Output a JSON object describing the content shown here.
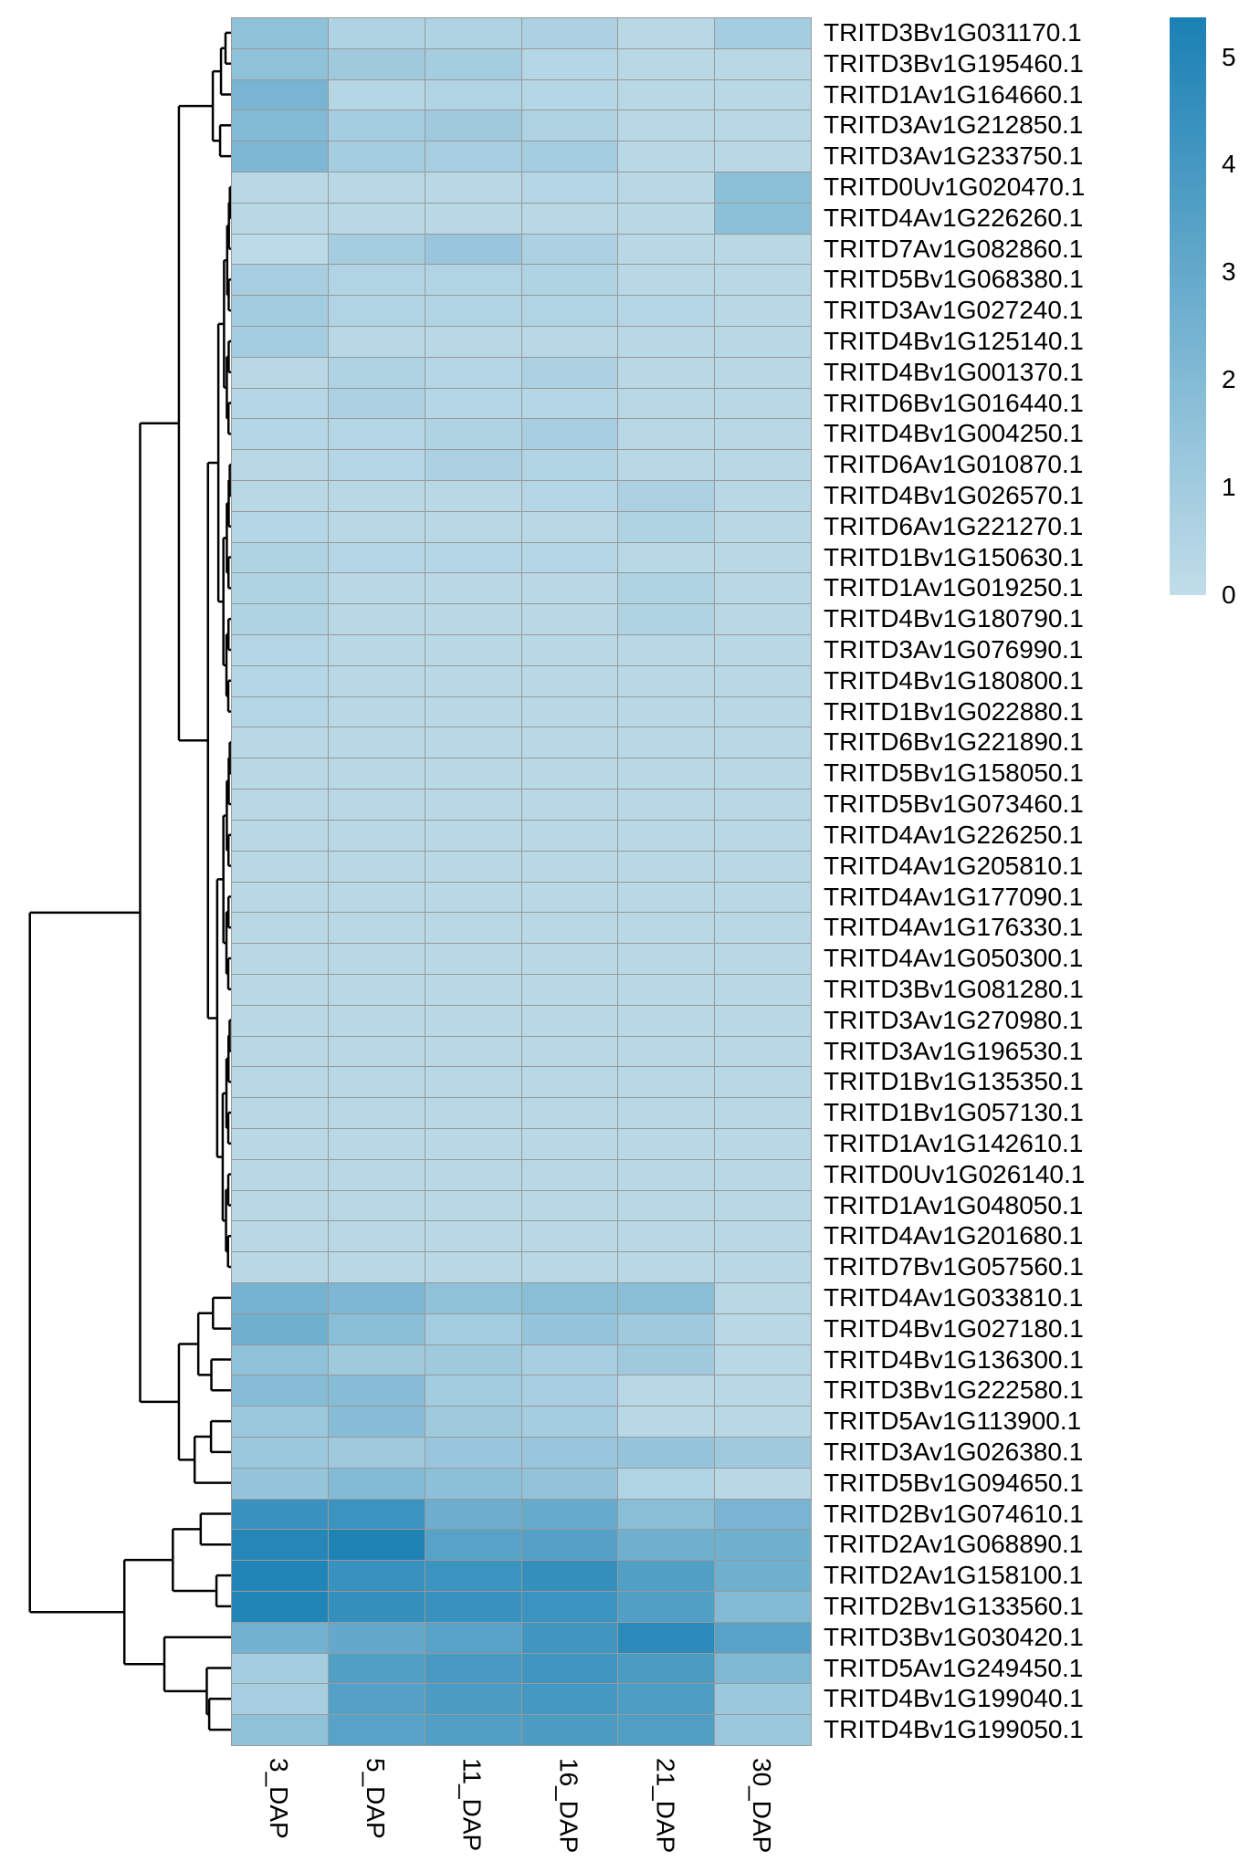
{
  "chart_data": {
    "type": "heatmap",
    "title": "",
    "columns": [
      "3_DAP",
      "5_DAP",
      "11_DAP",
      "16_DAP",
      "21_DAP",
      "30_DAP"
    ],
    "rows": [
      "TRITD3Bv1G031170.1",
      "TRITD3Bv1G195460.1",
      "TRITD1Av1G164660.1",
      "TRITD3Av1G212850.1",
      "TRITD3Av1G233750.1",
      "TRITD0Uv1G020470.1",
      "TRITD4Av1G226260.1",
      "TRITD7Av1G082860.1",
      "TRITD5Bv1G068380.1",
      "TRITD3Av1G027240.1",
      "TRITD4Bv1G125140.1",
      "TRITD4Bv1G001370.1",
      "TRITD6Bv1G016440.1",
      "TRITD4Bv1G004250.1",
      "TRITD6Av1G010870.1",
      "TRITD4Bv1G026570.1",
      "TRITD6Av1G221270.1",
      "TRITD1Bv1G150630.1",
      "TRITD1Av1G019250.1",
      "TRITD4Bv1G180790.1",
      "TRITD3Av1G076990.1",
      "TRITD4Bv1G180800.1",
      "TRITD1Bv1G022880.1",
      "TRITD6Bv1G221890.1",
      "TRITD5Bv1G158050.1",
      "TRITD5Bv1G073460.1",
      "TRITD4Av1G226250.1",
      "TRITD4Av1G205810.1",
      "TRITD4Av1G177090.1",
      "TRITD4Av1G176330.1",
      "TRITD4Av1G050300.1",
      "TRITD3Bv1G081280.1",
      "TRITD3Av1G270980.1",
      "TRITD3Av1G196530.1",
      "TRITD1Bv1G135350.1",
      "TRITD1Bv1G057130.1",
      "TRITD1Av1G142610.1",
      "TRITD0Uv1G026140.1",
      "TRITD1Av1G048050.1",
      "TRITD4Av1G201680.1",
      "TRITD7Bv1G057560.1",
      "TRITD4Av1G033810.1",
      "TRITD4Bv1G027180.1",
      "TRITD4Bv1G136300.1",
      "TRITD3Bv1G222580.1",
      "TRITD5Av1G113900.1",
      "TRITD3Av1G026380.1",
      "TRITD5Bv1G094650.1",
      "TRITD2Bv1G074610.1",
      "TRITD2Av1G068890.1",
      "TRITD2Av1G158100.1",
      "TRITD2Bv1G133560.1",
      "TRITD3Bv1G030420.1",
      "TRITD5Av1G249450.1",
      "TRITD4Bv1G199040.1",
      "TRITD4Bv1G199050.1"
    ],
    "values": [
      [
        1.6,
        0.6,
        0.6,
        0.7,
        0.3,
        0.9
      ],
      [
        1.6,
        1.1,
        0.9,
        0.4,
        0.3,
        0.3
      ],
      [
        2.3,
        0.4,
        0.5,
        0.4,
        0.3,
        0.3
      ],
      [
        2.0,
        0.9,
        1.1,
        0.6,
        0.3,
        0.3
      ],
      [
        2.2,
        0.9,
        0.8,
        0.9,
        0.3,
        0.3
      ],
      [
        0.3,
        0.3,
        0.3,
        0.4,
        0.3,
        1.7
      ],
      [
        0.3,
        0.3,
        0.3,
        0.3,
        0.3,
        1.7
      ],
      [
        0.2,
        0.9,
        1.3,
        0.7,
        0.3,
        0.3
      ],
      [
        0.8,
        0.5,
        0.5,
        0.6,
        0.3,
        0.3
      ],
      [
        1.0,
        0.5,
        0.5,
        0.5,
        0.4,
        0.3
      ],
      [
        0.9,
        0.3,
        0.3,
        0.3,
        0.3,
        0.3
      ],
      [
        0.3,
        0.6,
        0.4,
        0.7,
        0.3,
        0.3
      ],
      [
        0.4,
        0.7,
        0.4,
        0.4,
        0.3,
        0.3
      ],
      [
        0.4,
        0.4,
        0.6,
        0.8,
        0.3,
        0.3
      ],
      [
        0.3,
        0.4,
        0.7,
        0.5,
        0.3,
        0.3
      ],
      [
        0.3,
        0.3,
        0.3,
        0.4,
        0.7,
        0.3
      ],
      [
        0.4,
        0.3,
        0.3,
        0.3,
        0.6,
        0.3
      ],
      [
        0.6,
        0.4,
        0.4,
        0.4,
        0.3,
        0.3
      ],
      [
        0.6,
        0.3,
        0.3,
        0.3,
        0.6,
        0.3
      ],
      [
        0.6,
        0.3,
        0.3,
        0.3,
        0.6,
        0.3
      ],
      [
        0.4,
        0.3,
        0.3,
        0.3,
        0.3,
        0.3
      ],
      [
        0.4,
        0.3,
        0.3,
        0.3,
        0.3,
        0.3
      ],
      [
        0.4,
        0.3,
        0.3,
        0.3,
        0.3,
        0.3
      ],
      [
        0.3,
        0.3,
        0.3,
        0.3,
        0.3,
        0.3
      ],
      [
        0.3,
        0.3,
        0.3,
        0.3,
        0.3,
        0.3
      ],
      [
        0.3,
        0.3,
        0.3,
        0.3,
        0.3,
        0.3
      ],
      [
        0.3,
        0.3,
        0.3,
        0.3,
        0.3,
        0.3
      ],
      [
        0.3,
        0.3,
        0.3,
        0.3,
        0.3,
        0.3
      ],
      [
        0.3,
        0.3,
        0.3,
        0.3,
        0.3,
        0.3
      ],
      [
        0.3,
        0.3,
        0.3,
        0.3,
        0.3,
        0.3
      ],
      [
        0.3,
        0.3,
        0.3,
        0.3,
        0.3,
        0.3
      ],
      [
        0.3,
        0.3,
        0.3,
        0.3,
        0.3,
        0.3
      ],
      [
        0.3,
        0.3,
        0.3,
        0.3,
        0.3,
        0.3
      ],
      [
        0.3,
        0.3,
        0.3,
        0.3,
        0.3,
        0.3
      ],
      [
        0.3,
        0.3,
        0.3,
        0.3,
        0.3,
        0.3
      ],
      [
        0.3,
        0.3,
        0.3,
        0.3,
        0.3,
        0.3
      ],
      [
        0.3,
        0.3,
        0.3,
        0.3,
        0.3,
        0.3
      ],
      [
        0.3,
        0.3,
        0.3,
        0.3,
        0.3,
        0.3
      ],
      [
        0.3,
        0.3,
        0.3,
        0.3,
        0.3,
        0.3
      ],
      [
        0.3,
        0.3,
        0.3,
        0.3,
        0.3,
        0.3
      ],
      [
        0.3,
        0.3,
        0.3,
        0.3,
        0.3,
        0.3
      ],
      [
        2.4,
        2.2,
        1.6,
        1.8,
        1.8,
        0.3
      ],
      [
        2.6,
        1.8,
        0.9,
        1.4,
        1.1,
        0.3
      ],
      [
        1.6,
        1.1,
        1.1,
        0.8,
        1.1,
        0.3
      ],
      [
        1.9,
        1.9,
        1.0,
        0.8,
        0.3,
        0.3
      ],
      [
        1.2,
        1.9,
        1.1,
        0.9,
        0.3,
        0.3
      ],
      [
        1.2,
        1.1,
        1.3,
        1.3,
        1.4,
        1.1
      ],
      [
        1.4,
        2.0,
        1.7,
        1.5,
        0.5,
        0.3
      ],
      [
        4.4,
        4.3,
        2.7,
        2.9,
        1.8,
        2.3
      ],
      [
        5.0,
        5.2,
        3.4,
        3.5,
        2.6,
        2.6
      ],
      [
        5.1,
        4.4,
        4.3,
        4.5,
        3.6,
        2.6
      ],
      [
        5.1,
        4.5,
        4.4,
        4.3,
        3.6,
        2.0
      ],
      [
        2.5,
        3.0,
        3.4,
        4.1,
        4.8,
        3.4
      ],
      [
        0.9,
        3.6,
        3.9,
        4.1,
        3.8,
        2.1
      ],
      [
        0.8,
        3.5,
        3.8,
        4.0,
        3.7,
        1.2
      ],
      [
        1.6,
        3.4,
        3.6,
        3.8,
        3.6,
        1.2
      ]
    ],
    "colorbar": {
      "range": [
        0,
        5.37
      ],
      "ticks": [
        "0",
        "1",
        "2",
        "3",
        "4",
        "5"
      ],
      "low_color": "#c1dde9",
      "high_color": "#1a80b4"
    },
    "cell_border_color": "#999999",
    "row_dendrogram": true,
    "grid": false
  }
}
